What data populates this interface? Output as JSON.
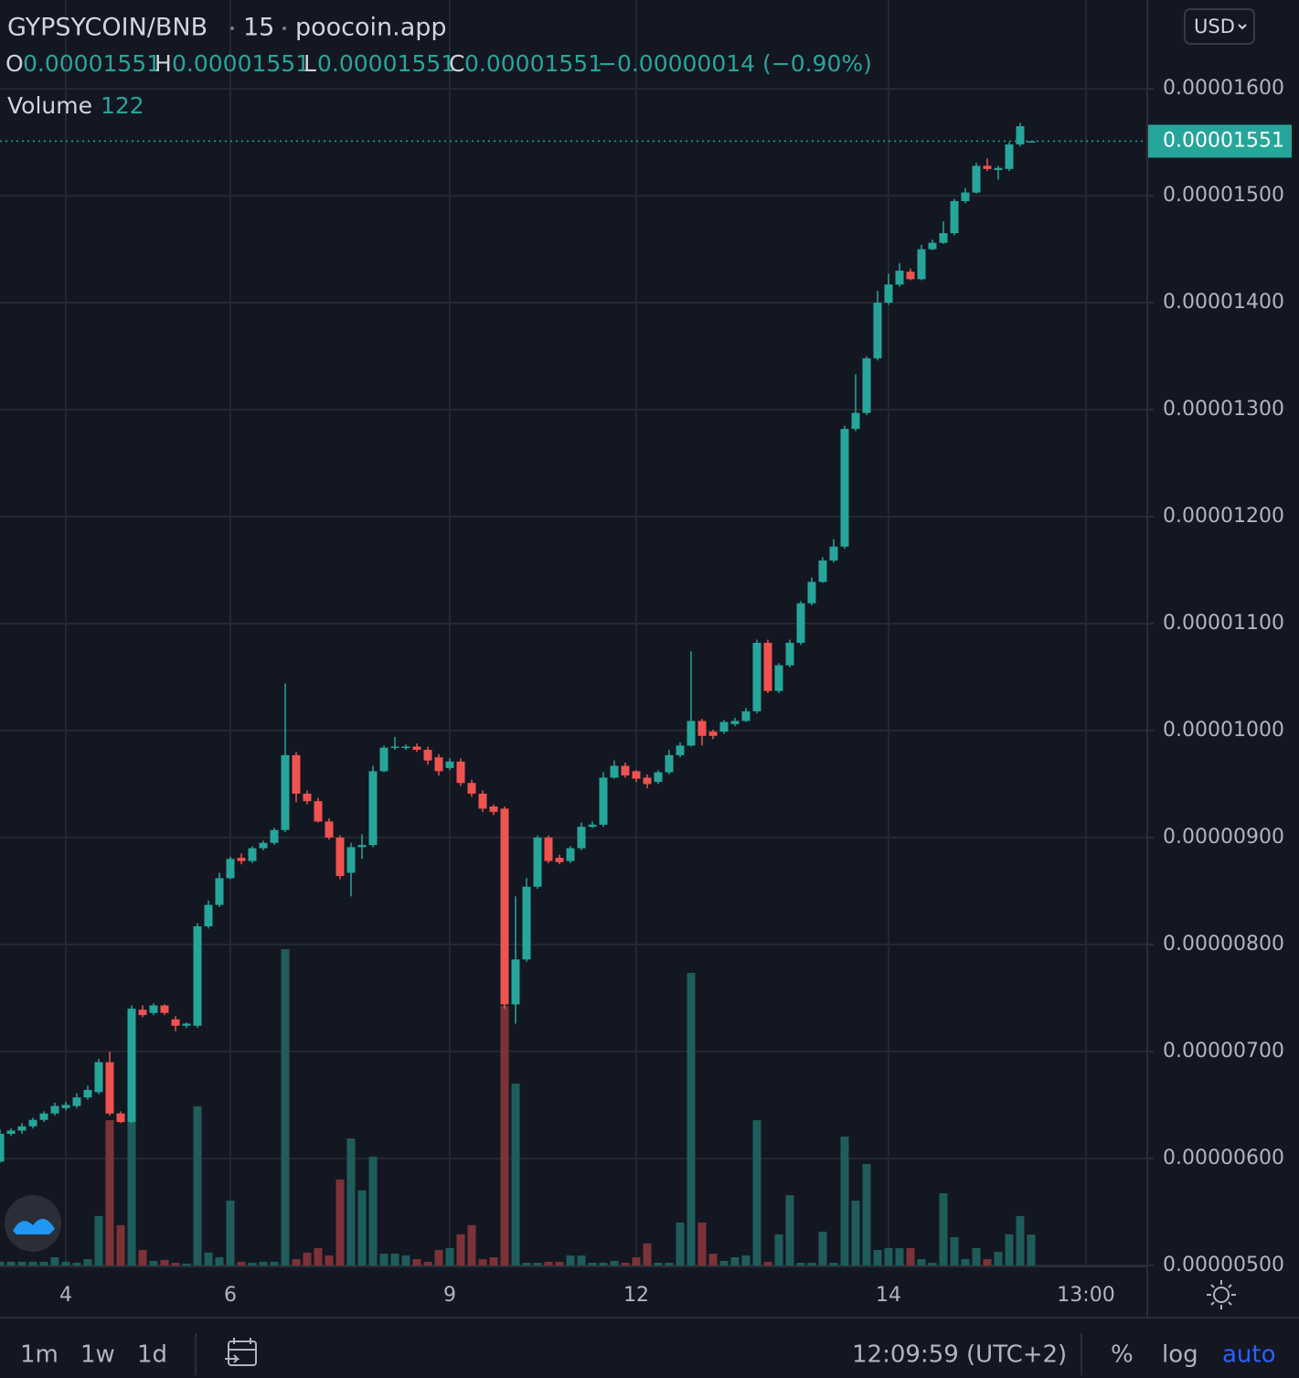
{
  "chart_data": {
    "type": "candlestick",
    "symbol": "GYPSYCOIN/BNB",
    "interval": "15",
    "source": "poocoin.app",
    "ohlc_legend": [
      {
        "key": "O",
        "value": "0.00001551"
      },
      {
        "key": "H",
        "value": "0.00001551"
      },
      {
        "key": "L",
        "value": "0.00001551"
      },
      {
        "key": "C",
        "value": "0.00001551"
      }
    ],
    "change": "−0.00000014 (−0.90%)",
    "volume_label": "Volume",
    "up_color": "#26a69a",
    "down_color": "#ef5350",
    "volume_up_color": "#1f5d5a",
    "volume_down_color": "#7b3337",
    "grid": true,
    "ylim": [
      4.99e-06,
      1.683e-05
    ],
    "yticks": [
      {
        "value": 5e-06,
        "label": "0.00000500"
      },
      {
        "value": 6e-06,
        "label": "0.00000600"
      },
      {
        "value": 7e-06,
        "label": "0.00000700"
      },
      {
        "value": 8e-06,
        "label": "0.00000800"
      },
      {
        "value": 9e-06,
        "label": "0.00000900"
      },
      {
        "value": 1e-05,
        "label": "0.00001000"
      },
      {
        "value": 1.1e-05,
        "label": "0.00001100"
      },
      {
        "value": 1.2e-05,
        "label": "0.00001200"
      },
      {
        "value": 1.3e-05,
        "label": "0.00001300"
      },
      {
        "value": 1.4e-05,
        "label": "0.00001400"
      },
      {
        "value": 1.5e-05,
        "label": "0.00001500"
      },
      {
        "value": 1.6e-05,
        "label": "0.00001600"
      }
    ],
    "last_price": {
      "value": 1.551e-05,
      "label": "0.00001551"
    },
    "categories": [
      null,
      null,
      null,
      null,
      null,
      null,
      "4",
      null,
      null,
      null,
      null,
      null,
      null,
      null,
      null,
      null,
      null,
      null,
      null,
      null,
      null,
      "6",
      null,
      null,
      null,
      null,
      null,
      null,
      null,
      null,
      null,
      null,
      null,
      null,
      null,
      null,
      null,
      null,
      null,
      null,
      null,
      "9",
      null,
      null,
      null,
      null,
      null,
      null,
      null,
      null,
      null,
      null,
      null,
      null,
      null,
      null,
      null,
      null,
      "12",
      null,
      null,
      null,
      null,
      null,
      null,
      null,
      null,
      null,
      null,
      null,
      null,
      null,
      null,
      null,
      null,
      null,
      null,
      null,
      null,
      null,
      null,
      "14",
      null,
      null,
      null,
      null,
      null,
      null,
      null,
      null,
      null,
      null,
      null,
      null,
      null,
      null,
      null,
      null,
      null,
      "13:00"
    ],
    "open": [
      5.97e-06,
      6.23e-06,
      6.26e-06,
      6.3e-06,
      6.36e-06,
      6.42e-06,
      6.47e-06,
      6.49e-06,
      6.57e-06,
      6.62e-06,
      6.9e-06,
      6.42e-06,
      6.34e-06,
      7.39e-06,
      7.36e-06,
      7.43e-06,
      7.3e-06,
      7.24e-06,
      7.24e-06,
      8.17e-06,
      8.37e-06,
      8.62e-06,
      8.81e-06,
      8.78e-06,
      8.9e-06,
      8.95e-06,
      9.07e-06,
      9.77e-06,
      9.41e-06,
      9.34e-06,
      9.15e-06,
      9e-06,
      8.67e-06,
      8.91e-06,
      8.93e-06,
      9.62e-06,
      9.84e-06,
      9.84e-06,
      9.85e-06,
      9.82e-06,
      9.75e-06,
      9.65e-06,
      9.71e-06,
      9.51e-06,
      9.41e-06,
      9.29e-06,
      9.27e-06,
      7.44e-06,
      7.86e-06,
      8.54e-06,
      9e-06,
      8.81e-06,
      8.78e-06,
      8.9e-06,
      9.1e-06,
      9.12e-06,
      9.56e-06,
      9.67e-06,
      9.62e-06,
      9.56e-06,
      9.52e-06,
      9.61e-06,
      9.77e-06,
      9.86e-06,
      1.009e-05,
      9.99e-06,
      9.99e-06,
      1.006e-05,
      1.009e-05,
      1.018e-05,
      1.082e-05,
      1.037e-05,
      1.061e-05,
      1.082e-05,
      1.119e-05,
      1.139e-05,
      1.159e-05,
      1.172e-05,
      1.282e-05,
      1.297e-05,
      1.348e-05,
      1.4e-05,
      1.417e-05,
      1.429e-05,
      1.422e-05,
      1.45e-05,
      1.456e-05,
      1.465e-05,
      1.495e-05,
      1.503e-05,
      1.528e-05,
      1.524e-05,
      1.525e-05,
      1.548e-05,
      1.551e-05,
      null,
      null,
      null,
      null,
      null
    ],
    "high": [
      6.27e-06,
      6.28e-06,
      6.33e-06,
      6.38e-06,
      6.44e-06,
      6.52e-06,
      6.53e-06,
      6.61e-06,
      6.68e-06,
      6.93e-06,
      7e-06,
      6.44e-06,
      7.43e-06,
      7.43e-06,
      7.45e-06,
      7.44e-06,
      7.33e-06,
      7.27e-06,
      8.2e-06,
      8.41e-06,
      8.67e-06,
      8.82e-06,
      8.85e-06,
      8.92e-06,
      8.97e-06,
      9.09e-06,
      1.044e-05,
      9.8e-06,
      9.44e-06,
      9.37e-06,
      9.18e-06,
      9.02e-06,
      8.95e-06,
      9.03e-06,
      9.67e-06,
      9.86e-06,
      9.94e-06,
      9.87e-06,
      9.88e-06,
      9.85e-06,
      9.78e-06,
      9.74e-06,
      9.74e-06,
      9.54e-06,
      9.44e-06,
      9.31e-06,
      9.29e-06,
      8.45e-06,
      8.62e-06,
      9.02e-06,
      9.02e-06,
      8.84e-06,
      8.92e-06,
      9.14e-06,
      9.15e-06,
      9.61e-06,
      9.72e-06,
      9.7e-06,
      9.63e-06,
      9.59e-06,
      9.63e-06,
      9.82e-06,
      9.89e-06,
      1.074e-05,
      1.011e-05,
      1.001e-05,
      1.01e-05,
      1.012e-05,
      1.021e-05,
      1.085e-05,
      1.085e-05,
      1.063e-05,
      1.085e-05,
      1.121e-05,
      1.143e-05,
      1.162e-05,
      1.179e-05,
      1.285e-05,
      1.333e-05,
      1.35e-05,
      1.411e-05,
      1.427e-05,
      1.437e-05,
      1.432e-05,
      1.454e-05,
      1.459e-05,
      1.476e-05,
      1.497e-05,
      1.507e-05,
      1.531e-05,
      1.535e-05,
      1.528e-05,
      1.55e-05,
      1.568e-05,
      1.551e-05,
      null,
      null,
      null,
      null,
      null
    ],
    "low": [
      5.96e-06,
      6.21e-06,
      6.23e-06,
      6.28e-06,
      6.34e-06,
      6.4e-06,
      6.45e-06,
      6.47e-06,
      6.55e-06,
      6.6e-06,
      6.4e-06,
      6.33e-06,
      6.33e-06,
      7.32e-06,
      7.34e-06,
      7.34e-06,
      7.19e-06,
      7.22e-06,
      7.22e-06,
      8.15e-06,
      8.35e-06,
      8.61e-06,
      8.75e-06,
      8.76e-06,
      8.88e-06,
      8.93e-06,
      9.05e-06,
      9.33e-06,
      9.31e-06,
      9.14e-06,
      8.98e-06,
      8.61e-06,
      8.45e-06,
      8.8e-06,
      8.91e-06,
      9.61e-06,
      9.82e-06,
      9.82e-06,
      9.8e-06,
      9.68e-06,
      9.58e-06,
      9.63e-06,
      9.48e-06,
      9.38e-06,
      9.24e-06,
      9.21e-06,
      7.4e-06,
      7.26e-06,
      7.84e-06,
      8.52e-06,
      8.76e-06,
      8.75e-06,
      8.76e-06,
      8.88e-06,
      9.09e-06,
      9.1e-06,
      9.55e-06,
      9.56e-06,
      9.52e-06,
      9.46e-06,
      9.5e-06,
      9.59e-06,
      9.75e-06,
      9.85e-06,
      9.86e-06,
      9.92e-06,
      9.97e-06,
      1.004e-05,
      1.008e-05,
      1.016e-05,
      1.035e-05,
      1.035e-05,
      1.059e-05,
      1.08e-05,
      1.117e-05,
      1.138e-05,
      1.157e-05,
      1.17e-05,
      1.28e-05,
      1.295e-05,
      1.346e-05,
      1.398e-05,
      1.415e-05,
      1.421e-05,
      1.421e-05,
      1.449e-05,
      1.455e-05,
      1.463e-05,
      1.493e-05,
      1.502e-05,
      1.523e-05,
      1.515e-05,
      1.523e-05,
      1.546e-05,
      1.551e-05,
      null,
      null,
      null,
      null,
      null
    ],
    "close": [
      6.23e-06,
      6.26e-06,
      6.3e-06,
      6.36e-06,
      6.42e-06,
      6.49e-06,
      6.5e-06,
      6.57e-06,
      6.64e-06,
      6.9e-06,
      6.42e-06,
      6.34e-06,
      7.4e-06,
      7.34e-06,
      7.43e-06,
      7.36e-06,
      7.24e-06,
      7.26e-06,
      8.17e-06,
      8.37e-06,
      8.62e-06,
      8.8e-06,
      8.78e-06,
      8.9e-06,
      8.95e-06,
      9.07e-06,
      9.77e-06,
      9.41e-06,
      9.34e-06,
      9.15e-06,
      9e-06,
      8.64e-06,
      8.91e-06,
      8.93e-06,
      9.62e-06,
      9.84e-06,
      9.85e-06,
      9.85e-06,
      9.82e-06,
      9.72e-06,
      9.62e-06,
      9.71e-06,
      9.51e-06,
      9.41e-06,
      9.27e-06,
      9.24e-06,
      7.44e-06,
      7.86e-06,
      8.54e-06,
      9e-06,
      8.78e-06,
      8.77e-06,
      8.9e-06,
      9.1e-06,
      9.12e-06,
      9.56e-06,
      9.67e-06,
      9.58e-06,
      9.55e-06,
      9.5e-06,
      9.61e-06,
      9.77e-06,
      9.86e-06,
      1.009e-05,
      9.95e-06,
      9.95e-06,
      1.008e-05,
      1.009e-05,
      1.018e-05,
      1.082e-05,
      1.037e-05,
      1.061e-05,
      1.082e-05,
      1.119e-05,
      1.139e-05,
      1.159e-05,
      1.172e-05,
      1.282e-05,
      1.297e-05,
      1.348e-05,
      1.4e-05,
      1.417e-05,
      1.43e-05,
      1.422e-05,
      1.45e-05,
      1.456e-05,
      1.465e-05,
      1.495e-05,
      1.503e-05,
      1.528e-05,
      1.525e-05,
      1.526e-05,
      1.548e-05,
      1.565e-05,
      1.551e-05,
      null,
      null,
      null,
      null,
      null
    ],
    "volume": [
      18,
      18,
      18,
      18,
      18,
      35,
      18,
      14,
      28,
      193,
      560,
      158,
      560,
      63,
      21,
      25,
      14,
      11,
      613,
      53,
      35,
      252,
      18,
      14,
      18,
      18,
      1215,
      28,
      53,
      70,
      42,
      333,
      490,
      291,
      420,
      49,
      49,
      42,
      28,
      18,
      63,
      70,
      123,
      158,
      28,
      35,
      998,
      700,
      14,
      14,
      18,
      18,
      42,
      42,
      14,
      14,
      21,
      14,
      35,
      88,
      14,
      14,
      168,
      1124,
      168,
      49,
      21,
      35,
      42,
      560,
      18,
      123,
      273,
      14,
      14,
      133,
      14,
      497,
      252,
      392,
      63,
      70,
      70,
      70,
      28,
      14,
      280,
      112,
      28,
      70,
      28,
      56,
      123,
      193,
      122,
      null,
      null,
      null,
      null,
      null
    ]
  },
  "toolbar": {
    "currency": "USD",
    "ranges": [
      "1m",
      "1w",
      "1d"
    ],
    "clock": "12:09:59 (UTC+2)",
    "percent": "%",
    "log": "log",
    "auto": "auto"
  }
}
